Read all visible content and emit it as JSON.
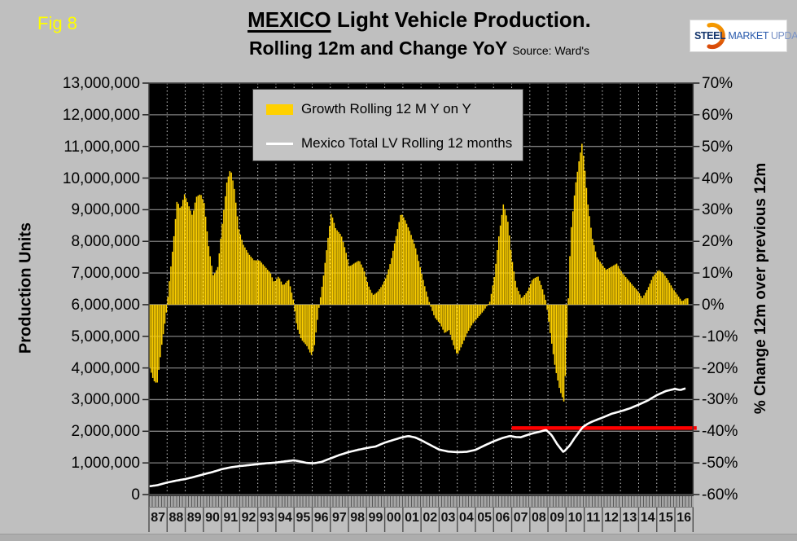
{
  "fig_label": "Fig 8",
  "title": {
    "emphasis": "MEXICO",
    "rest": " Light Vehicle Production.",
    "line2": "Rolling 12m and Change YoY",
    "source": "Source: Ward's"
  },
  "logo": {
    "steel": "STEEL",
    "market": "MARKET",
    "update": "UPDATE"
  },
  "axes": {
    "left_title": "Production Units",
    "right_title": "% Change 12m over previous 12m",
    "left_ticks": [
      "13,000,000",
      "12,000,000",
      "11,000,000",
      "10,000,000",
      "9,000,000",
      "8,000,000",
      "7,000,000",
      "6,000,000",
      "5,000,000",
      "4,000,000",
      "3,000,000",
      "2,000,000",
      "1,000,000",
      "0"
    ],
    "right_ticks": [
      "70%",
      "60%",
      "50%",
      "40%",
      "30%",
      "20%",
      "10%",
      "0%",
      "-10%",
      "-20%",
      "-30%",
      "-40%",
      "-50%",
      "-60%"
    ],
    "x_labels": [
      "87",
      "88",
      "89",
      "90",
      "91",
      "92",
      "93",
      "94",
      "95",
      "96",
      "97",
      "98",
      "99",
      "00",
      "01",
      "02",
      "03",
      "04",
      "05",
      "06",
      "07",
      "08",
      "09",
      "10",
      "11",
      "12",
      "13",
      "14",
      "15",
      "16"
    ]
  },
  "legend": [
    {
      "label": "Growth Rolling 12 M Y on Y",
      "swatch": "area",
      "color": "#ffd100"
    },
    {
      "label": "Mexico Total LV Rolling 12 months",
      "swatch": "line",
      "color": "#ffffff"
    }
  ],
  "colors": {
    "page_bg": "#bfbfbf",
    "plot_bg": "#000000",
    "grid": "#7f7f7f",
    "grid_dotted": "#cfcfcf",
    "bar_yellow": "#ffd100",
    "line_white": "#ffffff",
    "reference_red": "#ff0000",
    "fig_label_yellow": "#ffff00"
  },
  "chart_data": {
    "type": "combo",
    "x_range": [
      1987,
      2017
    ],
    "left_axis": {
      "label": "Production Units",
      "min": 0,
      "max": 13000000,
      "tick_step": 1000000
    },
    "right_axis": {
      "label": "% Change 12m over previous 12m",
      "min": -60,
      "max": 70,
      "tick_step": 10
    },
    "grid": "on",
    "legend_position": "top-inside",
    "series": [
      {
        "name": "Growth Rolling 12 M Y on Y",
        "type": "bar",
        "axis": "right",
        "unit": "% YoY",
        "color": "#ffd100",
        "points": [
          [
            1987.0,
            -19
          ],
          [
            1987.25,
            -24
          ],
          [
            1987.45,
            -25
          ],
          [
            1987.7,
            -13
          ],
          [
            1987.95,
            -3
          ],
          [
            1988.1,
            6
          ],
          [
            1988.35,
            20
          ],
          [
            1988.55,
            33
          ],
          [
            1988.75,
            30
          ],
          [
            1988.95,
            35
          ],
          [
            1989.15,
            32
          ],
          [
            1989.4,
            28
          ],
          [
            1989.6,
            34
          ],
          [
            1989.85,
            35
          ],
          [
            1990.05,
            32
          ],
          [
            1990.3,
            18
          ],
          [
            1990.55,
            9
          ],
          [
            1990.8,
            12
          ],
          [
            1991.05,
            26
          ],
          [
            1991.3,
            39
          ],
          [
            1991.5,
            43
          ],
          [
            1991.7,
            37
          ],
          [
            1991.95,
            24
          ],
          [
            1992.2,
            19
          ],
          [
            1992.5,
            16
          ],
          [
            1992.8,
            14
          ],
          [
            1993.1,
            14
          ],
          [
            1993.4,
            12
          ],
          [
            1993.7,
            10
          ],
          [
            1993.9,
            7
          ],
          [
            1994.15,
            9
          ],
          [
            1994.4,
            6
          ],
          [
            1994.7,
            8
          ],
          [
            1994.95,
            2
          ],
          [
            1995.15,
            -7
          ],
          [
            1995.4,
            -11
          ],
          [
            1995.7,
            -13
          ],
          [
            1995.95,
            -16
          ],
          [
            1996.1,
            -14
          ],
          [
            1996.35,
            -2
          ],
          [
            1996.6,
            8
          ],
          [
            1996.85,
            20
          ],
          [
            1997.05,
            29
          ],
          [
            1997.3,
            24
          ],
          [
            1997.6,
            22
          ],
          [
            1997.85,
            17
          ],
          [
            1998.05,
            12
          ],
          [
            1998.3,
            13
          ],
          [
            1998.6,
            14
          ],
          [
            1998.85,
            11
          ],
          [
            1999.1,
            6
          ],
          [
            1999.35,
            3
          ],
          [
            1999.6,
            4
          ],
          [
            1999.85,
            6
          ],
          [
            2000.1,
            9
          ],
          [
            2000.35,
            14
          ],
          [
            2000.6,
            21
          ],
          [
            2000.9,
            29
          ],
          [
            2001.1,
            27
          ],
          [
            2001.4,
            23
          ],
          [
            2001.7,
            18
          ],
          [
            2001.95,
            12
          ],
          [
            2002.2,
            6
          ],
          [
            2002.5,
            0
          ],
          [
            2002.75,
            -4
          ],
          [
            2003.05,
            -6
          ],
          [
            2003.3,
            -9
          ],
          [
            2003.55,
            -8
          ],
          [
            2003.8,
            -13
          ],
          [
            2004.0,
            -16
          ],
          [
            2004.25,
            -13
          ],
          [
            2004.55,
            -9
          ],
          [
            2004.85,
            -6
          ],
          [
            2005.15,
            -4
          ],
          [
            2005.45,
            -2
          ],
          [
            2005.8,
            1
          ],
          [
            2006.05,
            9
          ],
          [
            2006.3,
            22
          ],
          [
            2006.55,
            32
          ],
          [
            2006.8,
            26
          ],
          [
            2007.0,
            15
          ],
          [
            2007.25,
            6
          ],
          [
            2007.55,
            2
          ],
          [
            2007.85,
            4
          ],
          [
            2008.15,
            8
          ],
          [
            2008.45,
            9
          ],
          [
            2008.7,
            5
          ],
          [
            2008.9,
            1
          ],
          [
            2009.1,
            -8
          ],
          [
            2009.4,
            -20
          ],
          [
            2009.65,
            -27
          ],
          [
            2009.9,
            -31
          ],
          [
            2010.1,
            -2
          ],
          [
            2010.25,
            22
          ],
          [
            2010.5,
            37
          ],
          [
            2010.7,
            45
          ],
          [
            2010.88,
            51
          ],
          [
            2011.0,
            45
          ],
          [
            2011.2,
            32
          ],
          [
            2011.45,
            21
          ],
          [
            2011.7,
            15
          ],
          [
            2011.95,
            13
          ],
          [
            2012.2,
            11
          ],
          [
            2012.5,
            12
          ],
          [
            2012.8,
            13
          ],
          [
            2013.1,
            10
          ],
          [
            2013.4,
            8
          ],
          [
            2013.7,
            6
          ],
          [
            2014.0,
            4
          ],
          [
            2014.2,
            2
          ],
          [
            2014.5,
            5
          ],
          [
            2014.8,
            9
          ],
          [
            2015.1,
            11
          ],
          [
            2015.35,
            10
          ],
          [
            2015.6,
            8
          ],
          [
            2015.9,
            5
          ],
          [
            2016.15,
            3
          ],
          [
            2016.4,
            1
          ],
          [
            2016.6,
            2
          ]
        ]
      },
      {
        "name": "Mexico Total LV Rolling 12 months",
        "type": "line",
        "axis": "left",
        "unit": "units",
        "color": "#ffffff",
        "points": [
          [
            1987.0,
            260000
          ],
          [
            1987.5,
            300000
          ],
          [
            1988.0,
            380000
          ],
          [
            1988.5,
            440000
          ],
          [
            1989.0,
            490000
          ],
          [
            1989.5,
            560000
          ],
          [
            1990.0,
            640000
          ],
          [
            1990.5,
            710000
          ],
          [
            1991.0,
            800000
          ],
          [
            1991.5,
            860000
          ],
          [
            1992.0,
            900000
          ],
          [
            1992.5,
            930000
          ],
          [
            1993.0,
            960000
          ],
          [
            1993.5,
            990000
          ],
          [
            1994.0,
            1010000
          ],
          [
            1994.5,
            1050000
          ],
          [
            1995.0,
            1080000
          ],
          [
            1995.3,
            1050000
          ],
          [
            1995.7,
            1000000
          ],
          [
            1996.1,
            990000
          ],
          [
            1996.5,
            1030000
          ],
          [
            1997.0,
            1140000
          ],
          [
            1997.5,
            1250000
          ],
          [
            1998.0,
            1340000
          ],
          [
            1998.5,
            1410000
          ],
          [
            1999.0,
            1470000
          ],
          [
            1999.5,
            1520000
          ],
          [
            2000.0,
            1640000
          ],
          [
            2000.5,
            1730000
          ],
          [
            2000.9,
            1800000
          ],
          [
            2001.3,
            1850000
          ],
          [
            2001.7,
            1800000
          ],
          [
            2002.0,
            1720000
          ],
          [
            2002.5,
            1570000
          ],
          [
            2003.0,
            1420000
          ],
          [
            2003.5,
            1360000
          ],
          [
            2004.0,
            1340000
          ],
          [
            2004.5,
            1350000
          ],
          [
            2005.0,
            1410000
          ],
          [
            2005.5,
            1550000
          ],
          [
            2006.0,
            1680000
          ],
          [
            2006.5,
            1790000
          ],
          [
            2006.9,
            1850000
          ],
          [
            2007.2,
            1820000
          ],
          [
            2007.5,
            1810000
          ],
          [
            2008.0,
            1910000
          ],
          [
            2008.5,
            1980000
          ],
          [
            2008.9,
            2040000
          ],
          [
            2009.2,
            1880000
          ],
          [
            2009.5,
            1600000
          ],
          [
            2009.85,
            1340000
          ],
          [
            2010.2,
            1550000
          ],
          [
            2010.5,
            1810000
          ],
          [
            2010.9,
            2120000
          ],
          [
            2011.2,
            2240000
          ],
          [
            2011.5,
            2320000
          ],
          [
            2012.0,
            2430000
          ],
          [
            2012.5,
            2550000
          ],
          [
            2013.0,
            2630000
          ],
          [
            2013.5,
            2720000
          ],
          [
            2014.0,
            2840000
          ],
          [
            2014.5,
            2970000
          ],
          [
            2015.0,
            3140000
          ],
          [
            2015.5,
            3270000
          ],
          [
            2016.0,
            3340000
          ],
          [
            2016.3,
            3300000
          ],
          [
            2016.6,
            3360000
          ]
        ]
      },
      {
        "name": "Reference line",
        "type": "line",
        "axis": "left",
        "unit": "units",
        "color": "#ff0000",
        "points": [
          [
            2007.0,
            2100000
          ],
          [
            2017.2,
            2100000
          ]
        ]
      }
    ]
  }
}
